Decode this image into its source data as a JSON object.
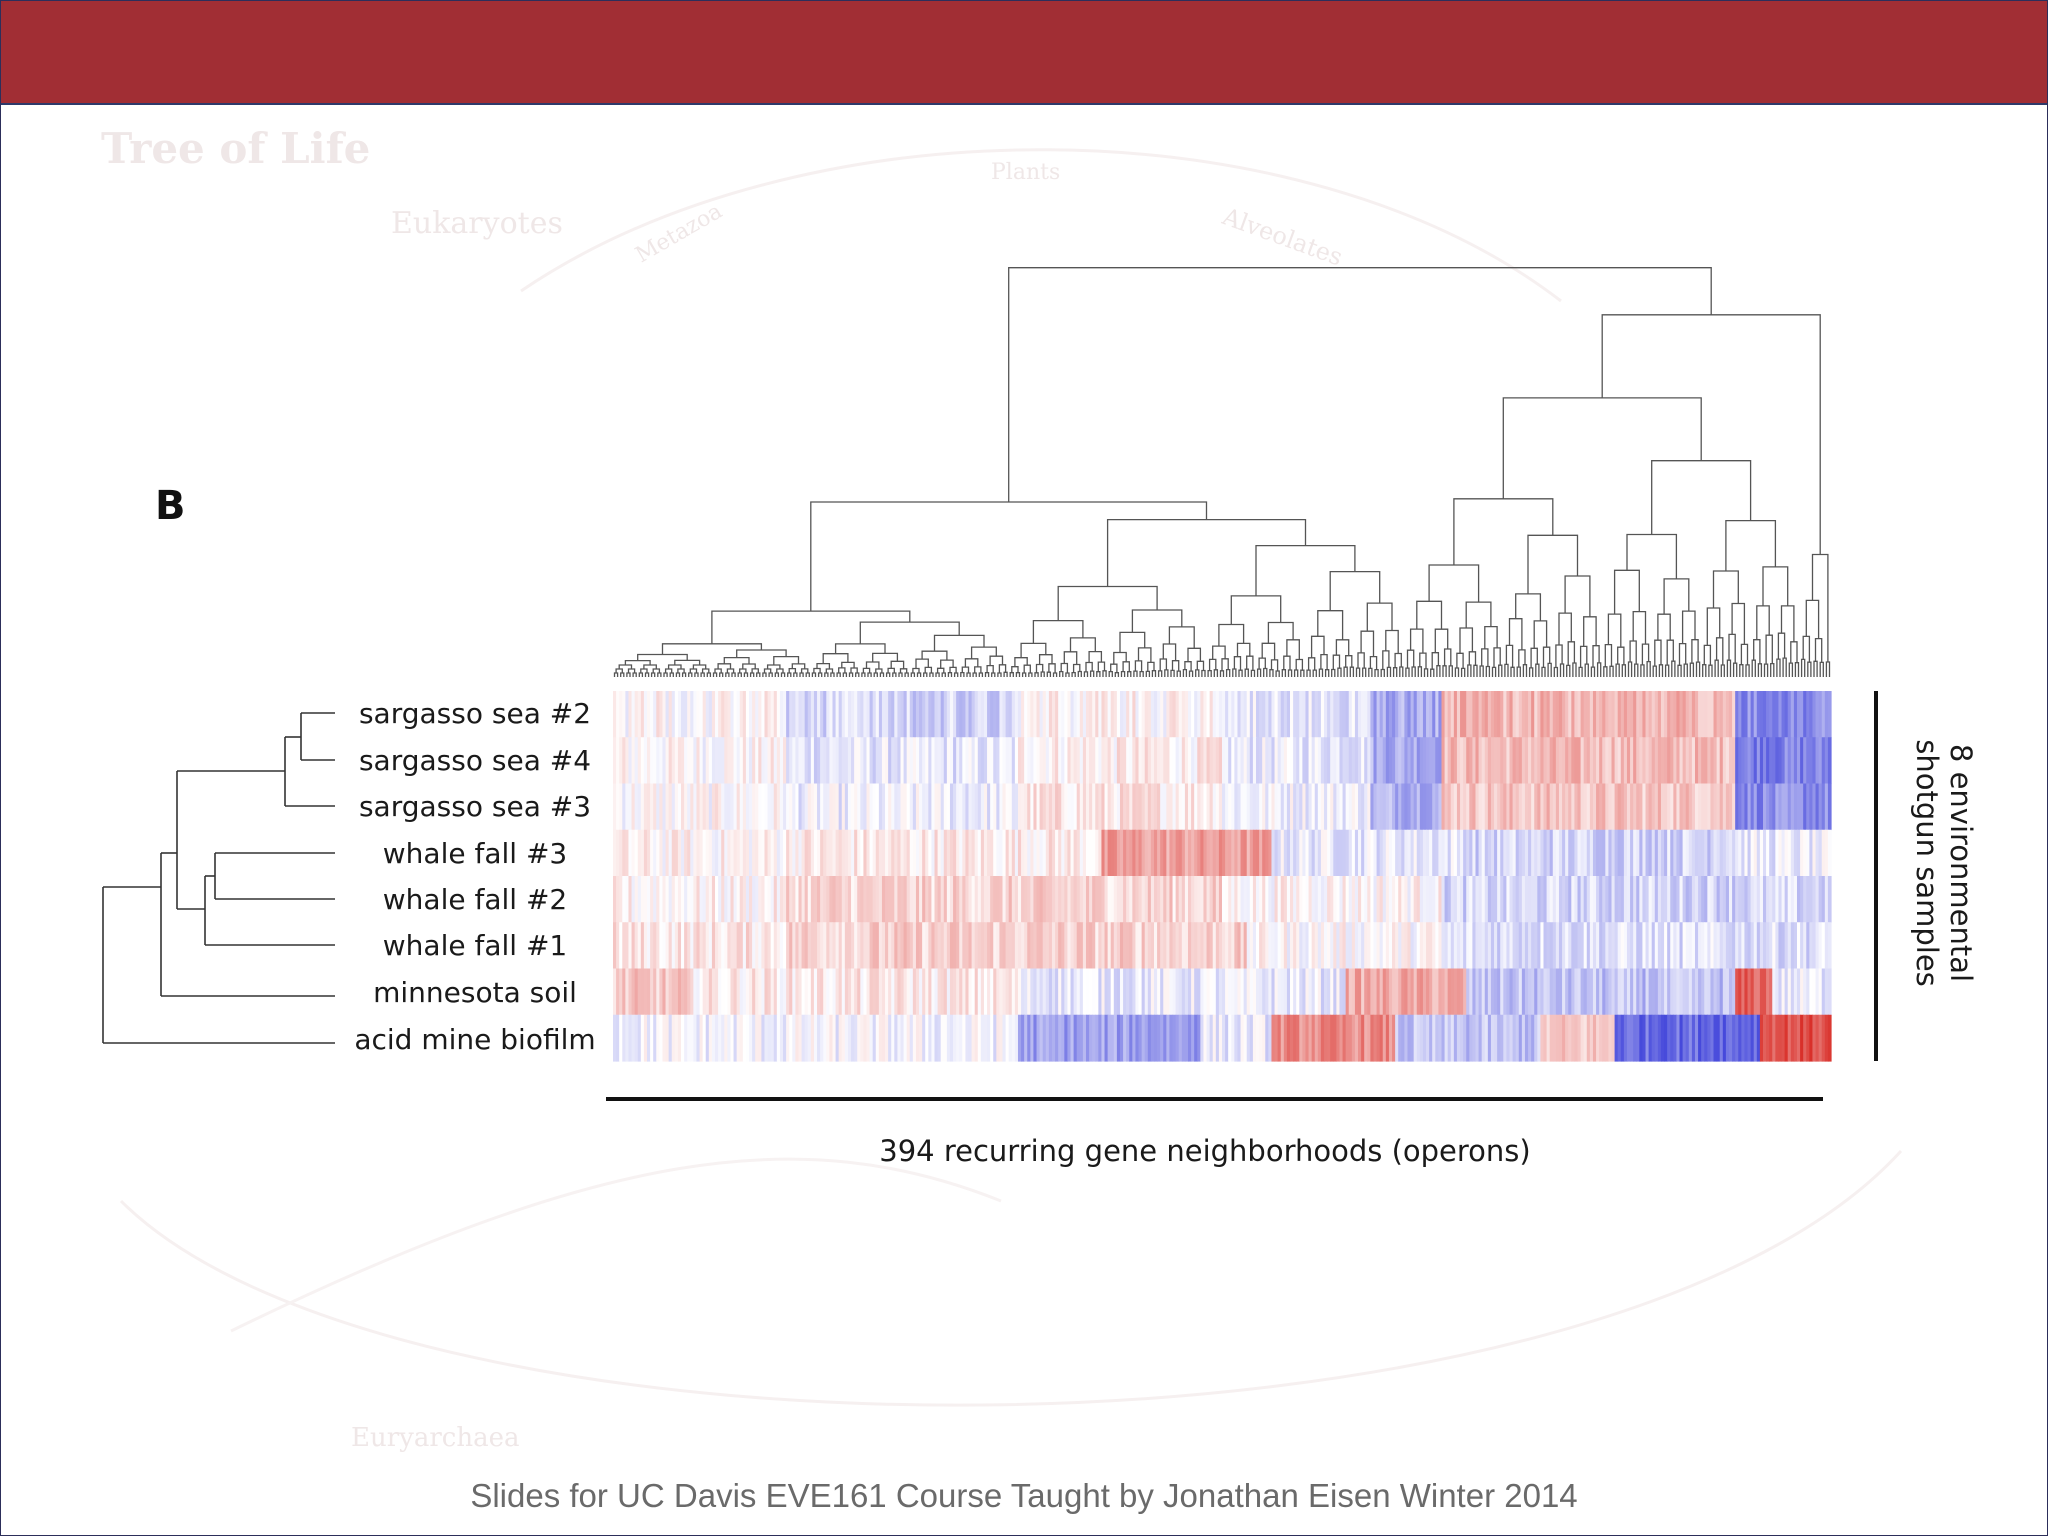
{
  "footer": {
    "text": "Slides for UC Davis EVE161 Course Taught by Jonathan Eisen Winter 2014"
  },
  "background": {
    "title": "Tree of Life",
    "labels": [
      "Plants",
      "Eukaryotes",
      "Metazoa",
      "Alveolates",
      "Euryarchaea"
    ]
  },
  "figure": {
    "panel_letter": "B",
    "samples": [
      "sargasso sea #2",
      "sargasso sea #4",
      "sargasso sea #3",
      "whale fall #3",
      "whale fall #2",
      "whale fall #1",
      "minnesota soil",
      "acid mine biofilm"
    ],
    "x_axis_label": "394 recurring gene neighborhoods (operons)",
    "y_axis_label_lines": [
      "8 environmental",
      "shotgun samples"
    ],
    "neighborhood_count": 394
  },
  "colors": {
    "header_bar": "#a12e34",
    "heat_high": "#d9302a",
    "heat_low": "#2b2fd6",
    "heat_mid": "#ffffff"
  }
}
